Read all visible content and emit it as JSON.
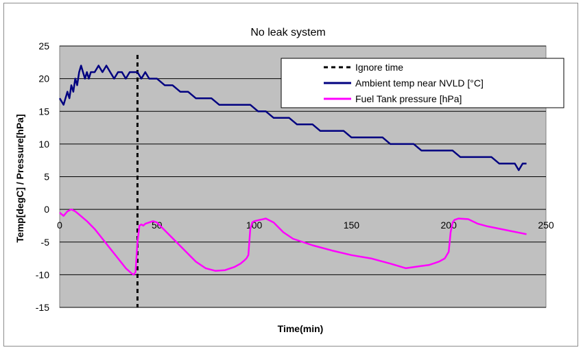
{
  "chart_data": {
    "type": "line",
    "title": "No leak system",
    "xlabel": "Time(min)",
    "ylabel": "Temp[degC] / Pressure[hPa]",
    "xlim": [
      0,
      250
    ],
    "ylim": [
      -15,
      25
    ],
    "xticks": [
      "0",
      "50",
      "100",
      "150",
      "200",
      "250"
    ],
    "yticks": [
      "25",
      "20",
      "15",
      "10",
      "5",
      "0",
      "-5",
      "-10",
      "-15"
    ],
    "grid": "horizontal",
    "background": "#c0c0c0",
    "legend_position": "top-right",
    "ignore_time": {
      "name": "Ignore time",
      "x": 40,
      "color": "#000000",
      "style": "dashed"
    },
    "series": [
      {
        "name": "Ambient temp near NVLD [°C]",
        "color": "#000080",
        "x": [
          0,
          2,
          4,
          5,
          6,
          7,
          8,
          9,
          10,
          11,
          12,
          13,
          14,
          15,
          16,
          18,
          20,
          22,
          24,
          26,
          28,
          30,
          32,
          34,
          36,
          38,
          40,
          42,
          44,
          46,
          48,
          50,
          54,
          58,
          62,
          66,
          70,
          74,
          78,
          82,
          86,
          90,
          94,
          98,
          102,
          106,
          110,
          114,
          118,
          122,
          126,
          130,
          134,
          138,
          142,
          146,
          150,
          154,
          158,
          162,
          166,
          170,
          174,
          178,
          182,
          186,
          190,
          194,
          198,
          202,
          206,
          210,
          214,
          218,
          222,
          226,
          230,
          234,
          236,
          238,
          240
        ],
        "y": [
          17,
          16,
          18,
          17,
          19,
          18,
          20,
          19,
          21,
          22,
          21,
          20,
          21,
          20,
          21,
          21,
          22,
          21,
          22,
          21,
          20,
          21,
          21,
          20,
          21,
          21,
          21,
          20,
          21,
          20,
          20,
          20,
          19,
          19,
          18,
          18,
          17,
          17,
          17,
          16,
          16,
          16,
          16,
          16,
          15,
          15,
          14,
          14,
          14,
          13,
          13,
          13,
          12,
          12,
          12,
          12,
          11,
          11,
          11,
          11,
          11,
          10,
          10,
          10,
          10,
          9,
          9,
          9,
          9,
          9,
          8,
          8,
          8,
          8,
          8,
          7,
          7,
          7,
          6,
          7,
          7
        ]
      },
      {
        "name": "Fuel Tank pressure [hPa]",
        "color": "#ff00ff",
        "x": [
          0,
          2,
          4,
          6,
          8,
          10,
          14,
          18,
          22,
          26,
          30,
          34,
          37,
          38,
          39,
          40,
          41,
          42,
          43,
          44,
          46,
          48,
          50,
          55,
          60,
          65,
          70,
          75,
          80,
          85,
          90,
          93,
          95,
          96,
          97,
          98,
          99,
          100,
          103,
          106,
          110,
          115,
          120,
          130,
          140,
          150,
          160,
          170,
          178,
          185,
          190,
          195,
          198,
          200,
          201,
          202,
          203,
          205,
          210,
          215,
          220,
          230,
          240
        ],
        "y": [
          -0.5,
          -1,
          -0.3,
          0,
          -0.3,
          -0.8,
          -1.8,
          -3,
          -4.5,
          -6,
          -7.5,
          -9,
          -9.8,
          -10,
          -9.6,
          -5,
          -2.5,
          -2.3,
          -2.5,
          -2.2,
          -2,
          -1.8,
          -2,
          -3.5,
          -5,
          -6.5,
          -8,
          -9,
          -9.4,
          -9.3,
          -8.8,
          -8.3,
          -7.8,
          -7.5,
          -7,
          -3,
          -2,
          -1.8,
          -1.6,
          -1.4,
          -2,
          -3.5,
          -4.5,
          -5.5,
          -6.3,
          -7,
          -7.5,
          -8.3,
          -9,
          -8.7,
          -8.5,
          -8,
          -7.5,
          -6.5,
          -3.5,
          -2,
          -1.6,
          -1.4,
          -1.5,
          -2.2,
          -2.6,
          -3.2,
          -3.8
        ]
      }
    ]
  }
}
